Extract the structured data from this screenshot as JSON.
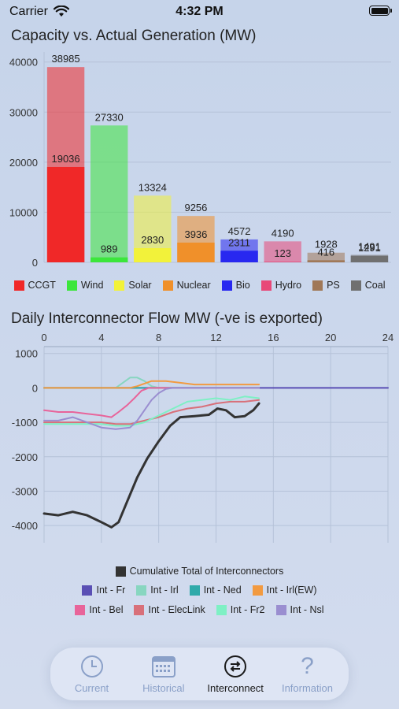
{
  "status_bar": {
    "carrier": "Carrier",
    "time": "4:32 PM"
  },
  "colors": {
    "CCGT": "#f02828",
    "Wind": "#3ce63c",
    "Solar": "#f2f23a",
    "Nuclear": "#f0902a",
    "Bio": "#2828f0",
    "Hydro": "#e84878",
    "PS": "#a07858",
    "Coal": "#707070"
  },
  "chart_data": [
    {
      "type": "bar",
      "title": "Capacity vs. Actual Generation (MW)",
      "categories": [
        "CCGT",
        "Wind",
        "Solar",
        "Nuclear",
        "Bio",
        "Hydro",
        "PS",
        "Coal"
      ],
      "series": [
        {
          "name": "Capacity",
          "values": [
            38985,
            27330,
            13324,
            9256,
            4572,
            4190,
            1928,
            1491
          ]
        },
        {
          "name": "Actual",
          "values": [
            19036,
            989,
            2830,
            3936,
            2311,
            123,
            416,
            1291
          ]
        }
      ],
      "ylim": [
        0,
        42000
      ],
      "yticks": [
        0,
        10000,
        20000,
        30000,
        40000
      ],
      "legend": "bottom"
    },
    {
      "type": "line",
      "title": "Daily Interconnector Flow MW (-ve is exported)",
      "xlim": [
        0,
        24
      ],
      "xticks": [
        0,
        4,
        8,
        12,
        16,
        20,
        24
      ],
      "ylim": [
        -4500,
        1200
      ],
      "yticks": [
        1000,
        0,
        -1000,
        -2000,
        -3000,
        -4000
      ],
      "series": [
        {
          "name": "Cumulative Total of Interconnectors",
          "color": "#333333",
          "width": 3,
          "x": [
            0,
            1,
            2,
            3,
            4,
            4.7,
            5.2,
            5.8,
            6.5,
            7.2,
            8,
            8.8,
            9.5,
            10.5,
            11.5,
            12.1,
            12.7,
            13.3,
            14,
            14.6,
            15
          ],
          "y": [
            -3650,
            -3700,
            -3600,
            -3700,
            -3900,
            -4050,
            -3900,
            -3300,
            -2600,
            -2050,
            -1550,
            -1100,
            -850,
            -820,
            -780,
            -600,
            -650,
            -850,
            -820,
            -650,
            -450
          ]
        },
        {
          "name": "Int - Fr",
          "color": "#5a4fb4",
          "width": 2,
          "x": [
            0,
            4,
            6,
            7,
            8,
            9,
            10,
            12,
            15,
            24
          ],
          "y": [
            0,
            0,
            0,
            0,
            0,
            0,
            0,
            0,
            0,
            0
          ]
        },
        {
          "name": "Int - Irl",
          "color": "#88d6c0",
          "width": 2,
          "x": [
            0,
            4,
            5,
            5.5,
            6,
            6.5,
            7,
            7.5,
            8,
            8.5,
            9,
            10,
            12,
            15
          ],
          "y": [
            0,
            0,
            0,
            150,
            300,
            300,
            200,
            50,
            0,
            0,
            0,
            0,
            0,
            0
          ]
        },
        {
          "name": "Int - Ned",
          "color": "#30aaaa",
          "width": 2,
          "x": [
            0,
            4,
            6,
            8,
            10,
            12,
            15
          ],
          "y": [
            0,
            0,
            0,
            0,
            0,
            0,
            0
          ]
        },
        {
          "name": "Int - Irl(EW)",
          "color": "#f29a40",
          "width": 2,
          "x": [
            0,
            4,
            6,
            6.5,
            7.5,
            8.5,
            9.5,
            10.5,
            12,
            13.5,
            15
          ],
          "y": [
            0,
            0,
            0,
            50,
            200,
            200,
            150,
            100,
            100,
            100,
            100
          ]
        },
        {
          "name": "Int - Bel",
          "color": "#e8649a",
          "width": 2,
          "x": [
            0,
            1,
            2,
            3,
            4,
            4.7,
            5.2,
            5.8,
            6.3,
            6.8,
            7.3,
            8,
            10,
            12,
            15
          ],
          "y": [
            -650,
            -700,
            -700,
            -750,
            -800,
            -850,
            -700,
            -500,
            -300,
            -80,
            0,
            0,
            0,
            0,
            0
          ]
        },
        {
          "name": "Int - ElecLink",
          "color": "#d8707a",
          "width": 2,
          "x": [
            0,
            1,
            2,
            3,
            4,
            5,
            6,
            7,
            8,
            9,
            10,
            11,
            12,
            13,
            14,
            15
          ],
          "y": [
            -1000,
            -1000,
            -1000,
            -1000,
            -1000,
            -1050,
            -1050,
            -950,
            -850,
            -700,
            -600,
            -550,
            -450,
            -400,
            -400,
            -350
          ]
        },
        {
          "name": "Int - Fr2",
          "color": "#7ef0c4",
          "width": 2,
          "x": [
            0,
            2,
            4,
            5,
            6,
            7,
            8,
            9,
            10,
            11,
            12,
            13,
            14,
            15
          ],
          "y": [
            -1050,
            -1050,
            -1050,
            -1100,
            -1100,
            -1000,
            -800,
            -600,
            -400,
            -350,
            -300,
            -350,
            -250,
            -300
          ]
        },
        {
          "name": "Int - Nsl",
          "color": "#9a8ed0",
          "width": 2,
          "x": [
            0,
            1,
            2,
            3,
            4,
            5,
            6,
            6.5,
            7,
            7.5,
            8,
            8.5,
            9,
            10,
            11,
            12,
            15
          ],
          "y": [
            -950,
            -950,
            -850,
            -1000,
            -1150,
            -1200,
            -1150,
            -950,
            -650,
            -350,
            -150,
            -30,
            0,
            0,
            0,
            0,
            0
          ]
        }
      ],
      "legend_rows": [
        [
          "Cumulative Total of Interconnectors"
        ],
        [
          "Int - Fr",
          "Int - Irl",
          "Int - Ned",
          "Int - Irl(EW)"
        ],
        [
          "Int - Bel",
          "Int - ElecLink",
          "Int - Fr2",
          "Int - Nsl"
        ]
      ],
      "legend": "bottom"
    }
  ],
  "tabs": [
    {
      "label": "Current",
      "icon": "clock-icon"
    },
    {
      "label": "Historical",
      "icon": "calendar-icon"
    },
    {
      "label": "Interconnect",
      "icon": "exchange-arrows-icon"
    },
    {
      "label": "Information",
      "icon": "question-mark-icon"
    }
  ],
  "active_tab": "Interconnect"
}
